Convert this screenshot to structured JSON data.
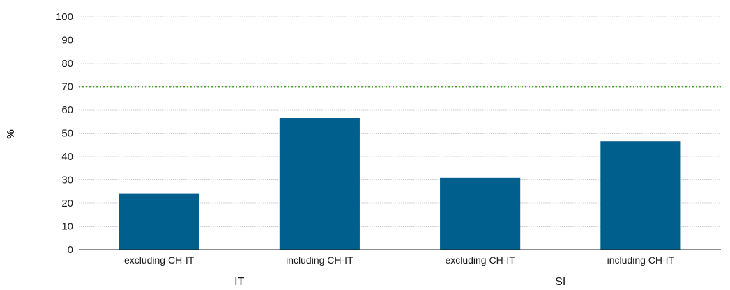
{
  "chart_data": {
    "type": "bar",
    "title": "",
    "xlabel": "",
    "ylabel": "%",
    "ylim": [
      0,
      100
    ],
    "yticks": [
      "0",
      "10",
      "20",
      "30",
      "40",
      "50",
      "60",
      "70",
      "80",
      "90",
      "100"
    ],
    "grid": true,
    "legend": "none",
    "reference_line": {
      "value": 70,
      "style": "dotted",
      "color": "#4aa832"
    },
    "bar_color": "#005f8c",
    "groups": [
      {
        "label": "IT",
        "categories": [
          "excluding CH-IT",
          "including CH-IT"
        ],
        "values": [
          24,
          56.7
        ]
      },
      {
        "label": "SI",
        "categories": [
          "excluding CH-IT",
          "including CH-IT"
        ],
        "values": [
          30.8,
          46.5
        ]
      }
    ]
  }
}
